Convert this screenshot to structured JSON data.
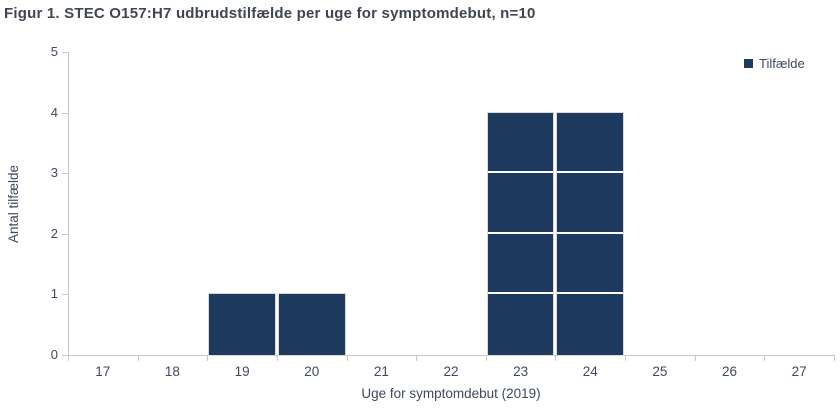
{
  "chart_data": {
    "type": "bar",
    "title": "Figur 1. STEC O157:H7 udbrudstilfælde per uge for symptomdebut, n=10",
    "categories": [
      "17",
      "18",
      "19",
      "20",
      "21",
      "22",
      "23",
      "24",
      "25",
      "26",
      "27"
    ],
    "values": [
      0,
      0,
      1,
      1,
      0,
      0,
      4,
      4,
      0,
      0,
      0
    ],
    "series_name": "Tilfælde",
    "xlabel": "Uge for symptomdebut (2019)",
    "ylabel": "Antal tilfælde",
    "ylim": [
      0,
      5
    ],
    "yticks": [
      0,
      1,
      2,
      3,
      4,
      5
    ],
    "grid": false,
    "legend_position": "top-right",
    "bar_style": "stacked-unit-blocks",
    "colors": {
      "bar": "#1e3a5f",
      "bar_divider": "#ffffff",
      "axis": "#c6c6c6",
      "tick_text": "#3e4960",
      "title_text": "#3f4652",
      "background": "#ffffff"
    }
  }
}
